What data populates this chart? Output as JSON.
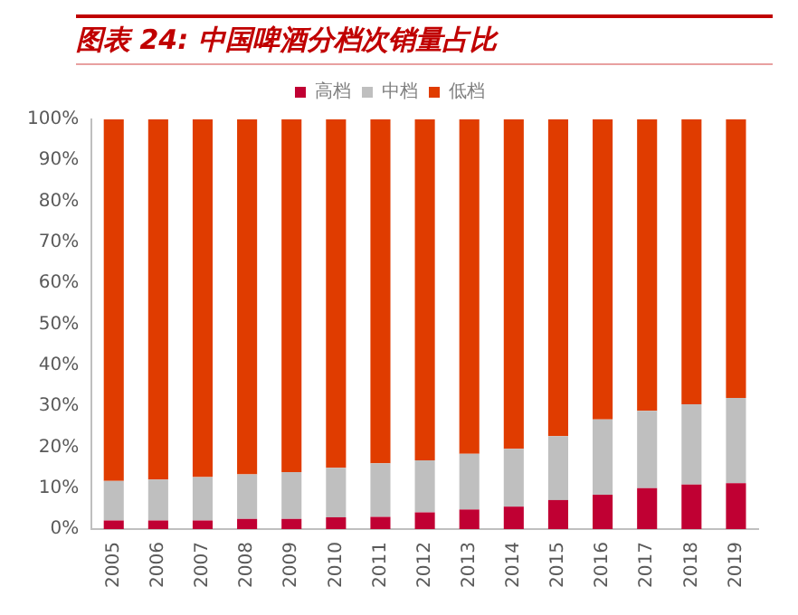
{
  "chart_data": {
    "type": "bar",
    "title": "图表 24:  中国啤酒分档次销量占比",
    "stacked": true,
    "categories": [
      "2005",
      "2006",
      "2007",
      "2008",
      "2009",
      "2010",
      "2011",
      "2012",
      "2013",
      "2014",
      "2015",
      "2016",
      "2017",
      "2018",
      "2019"
    ],
    "series": [
      {
        "name": "高档",
        "color": "#c00033",
        "values": [
          2.1,
          2.1,
          2.1,
          2.5,
          2.5,
          2.9,
          3.0,
          4.1,
          4.8,
          5.5,
          7.1,
          8.4,
          10.0,
          10.9,
          11.2
        ]
      },
      {
        "name": "中档",
        "color": "#bfbfbf",
        "values": [
          9.7,
          10.0,
          10.6,
          10.9,
          11.4,
          12.1,
          13.1,
          12.7,
          13.6,
          14.1,
          15.6,
          18.4,
          18.9,
          19.6,
          20.8
        ]
      },
      {
        "name": "低档",
        "color": "#e03c00",
        "values": [
          88.2,
          87.9,
          87.3,
          86.6,
          86.1,
          85.0,
          83.9,
          83.2,
          81.6,
          80.4,
          77.3,
          73.2,
          71.1,
          69.5,
          68.0
        ]
      }
    ],
    "ylim": [
      0,
      100
    ],
    "yticks": [
      {
        "value": 0,
        "label": "0%"
      },
      {
        "value": 10,
        "label": "10%"
      },
      {
        "value": 20,
        "label": "20%"
      },
      {
        "value": 30,
        "label": "30%"
      },
      {
        "value": 40,
        "label": "40%"
      },
      {
        "value": 50,
        "label": "50%"
      },
      {
        "value": 60,
        "label": "60%"
      },
      {
        "value": 70,
        "label": "70%"
      },
      {
        "value": 80,
        "label": "80%"
      },
      {
        "value": 90,
        "label": "90%"
      },
      {
        "value": 100,
        "label": "100%"
      }
    ],
    "grid": false,
    "legend": "top"
  }
}
